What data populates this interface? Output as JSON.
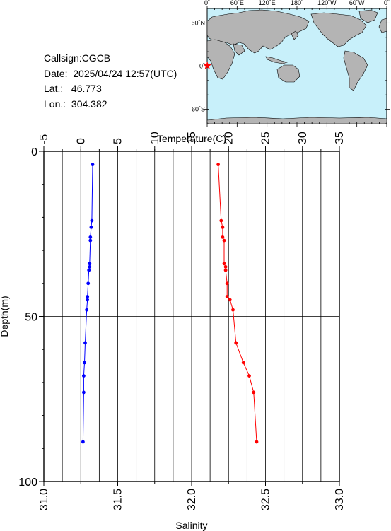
{
  "info": {
    "callsign": "Callsign:CGCB",
    "date": "Date:  2025/04/24 12:57(UTC)",
    "lat": "Lat.:   46.773",
    "lon": "Lon.:  304.382"
  },
  "map": {
    "top_ticks": [
      "0˚",
      "60˚E",
      "120˚E",
      "180˚",
      "120˚W",
      "60˚W",
      "0˚"
    ],
    "lat_ticks": [
      "60˚N",
      "0˚",
      "60˚S"
    ],
    "ocean_color": "#c8f0fa",
    "land_color": "#b4b4b4",
    "marker_color": "#ff0000",
    "marker_icon": "star-icon"
  },
  "chart_data": {
    "type": "scatter",
    "top_axis_label": "Temperature(C)",
    "bottom_axis_label": "Salinity",
    "y_axis_label": "Depth(m)",
    "temperature_range": [
      -5,
      35
    ],
    "temperature_ticks": [
      "-5",
      "0",
      "5",
      "10",
      "15",
      "20",
      "25",
      "30",
      "35"
    ],
    "salinity_range": [
      31.0,
      33.0
    ],
    "salinity_ticks": [
      "31.0",
      "31.5",
      "32.0",
      "32.5",
      "33.0"
    ],
    "depth_range": [
      0,
      100
    ],
    "depth_ticks": [
      "0",
      "50",
      "100"
    ],
    "grid": true,
    "series": [
      {
        "quantity": "temperature",
        "color": "#0000ff",
        "points": [
          {
            "x": 1.6,
            "depth": 4
          },
          {
            "x": 1.5,
            "depth": 21
          },
          {
            "x": 1.4,
            "depth": 23
          },
          {
            "x": 1.3,
            "depth": 26
          },
          {
            "x": 1.3,
            "depth": 27
          },
          {
            "x": 1.2,
            "depth": 34
          },
          {
            "x": 1.2,
            "depth": 35
          },
          {
            "x": 1.1,
            "depth": 36
          },
          {
            "x": 1.0,
            "depth": 40
          },
          {
            "x": 0.9,
            "depth": 44
          },
          {
            "x": 0.9,
            "depth": 45
          },
          {
            "x": 0.8,
            "depth": 48
          },
          {
            "x": 0.6,
            "depth": 58
          },
          {
            "x": 0.5,
            "depth": 64
          },
          {
            "x": 0.4,
            "depth": 68
          },
          {
            "x": 0.4,
            "depth": 73
          },
          {
            "x": 0.3,
            "depth": 88
          }
        ]
      },
      {
        "quantity": "salinity",
        "color": "#ff0000",
        "points": [
          {
            "x": 32.18,
            "depth": 4
          },
          {
            "x": 32.2,
            "depth": 21
          },
          {
            "x": 32.21,
            "depth": 23
          },
          {
            "x": 32.21,
            "depth": 26
          },
          {
            "x": 32.22,
            "depth": 27
          },
          {
            "x": 32.22,
            "depth": 34
          },
          {
            "x": 32.23,
            "depth": 35
          },
          {
            "x": 32.23,
            "depth": 36
          },
          {
            "x": 32.24,
            "depth": 40
          },
          {
            "x": 32.24,
            "depth": 44
          },
          {
            "x": 32.26,
            "depth": 45
          },
          {
            "x": 32.28,
            "depth": 48
          },
          {
            "x": 32.3,
            "depth": 58
          },
          {
            "x": 32.35,
            "depth": 64
          },
          {
            "x": 32.39,
            "depth": 68
          },
          {
            "x": 32.42,
            "depth": 73
          },
          {
            "x": 32.44,
            "depth": 88
          }
        ]
      }
    ]
  }
}
